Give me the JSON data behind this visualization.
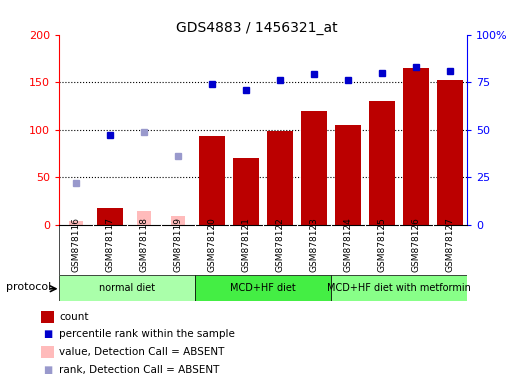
{
  "title": "GDS4883 / 1456321_at",
  "samples": [
    "GSM878116",
    "GSM878117",
    "GSM878118",
    "GSM878119",
    "GSM878120",
    "GSM878121",
    "GSM878122",
    "GSM878123",
    "GSM878124",
    "GSM878125",
    "GSM878126",
    "GSM878127"
  ],
  "count_present": [
    null,
    18,
    null,
    null,
    93,
    70,
    99,
    120,
    105,
    130,
    165,
    152
  ],
  "count_absent": [
    4,
    null,
    14,
    9,
    null,
    null,
    null,
    null,
    null,
    null,
    null,
    null
  ],
  "rank_present": [
    null,
    47,
    null,
    null,
    74,
    71,
    76,
    79,
    76,
    80,
    83,
    81
  ],
  "rank_absent": [
    22,
    null,
    49,
    36,
    null,
    null,
    null,
    null,
    null,
    null,
    null,
    null
  ],
  "groups": [
    {
      "label": "normal diet",
      "start": 0,
      "end": 4,
      "color": "#aaffaa"
    },
    {
      "label": "MCD+HF diet",
      "start": 4,
      "end": 8,
      "color": "#44ee44"
    },
    {
      "label": "MCD+HF diet with metformin",
      "start": 8,
      "end": 12,
      "color": "#88ff88"
    }
  ],
  "ylim_left": [
    0,
    200
  ],
  "ylim_right": [
    0,
    100
  ],
  "bar_color_present": "#bb0000",
  "bar_color_absent": "#ffbbbb",
  "dot_color_present": "#0000cc",
  "dot_color_absent": "#9999cc",
  "bg_color": "#cccccc",
  "yticks_left": [
    0,
    50,
    100,
    150,
    200
  ],
  "yticks_right": [
    0,
    25,
    50,
    75,
    100
  ],
  "ytick_labels_right": [
    "0",
    "25",
    "50",
    "75",
    "100%"
  ]
}
